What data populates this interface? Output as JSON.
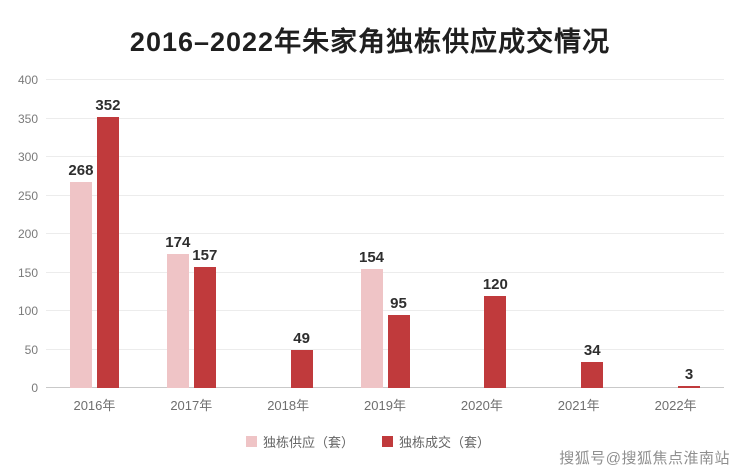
{
  "title": "2016–2022年朱家角独栋供应成交情况",
  "watermark": "搜狐号@搜狐焦点淮南站",
  "chart_data": {
    "type": "bar",
    "title": "2016–2022年朱家角独栋供应成交情况",
    "categories": [
      "2016年",
      "2017年",
      "2018年",
      "2019年",
      "2020年",
      "2021年",
      "2022年"
    ],
    "series": [
      {
        "key": "supply",
        "name": "独栋供应（套）",
        "color": "#efc4c6",
        "values": [
          268,
          174,
          null,
          154,
          null,
          null,
          null
        ]
      },
      {
        "key": "deal",
        "name": "独栋成交（套）",
        "color": "#c03a3c",
        "values": [
          352,
          157,
          49,
          95,
          120,
          34,
          3
        ]
      }
    ],
    "xlabel": "",
    "ylabel": "",
    "ylim": [
      0,
      400
    ],
    "ytick_interval": 50,
    "grid": true,
    "legend_position": "bottom"
  }
}
